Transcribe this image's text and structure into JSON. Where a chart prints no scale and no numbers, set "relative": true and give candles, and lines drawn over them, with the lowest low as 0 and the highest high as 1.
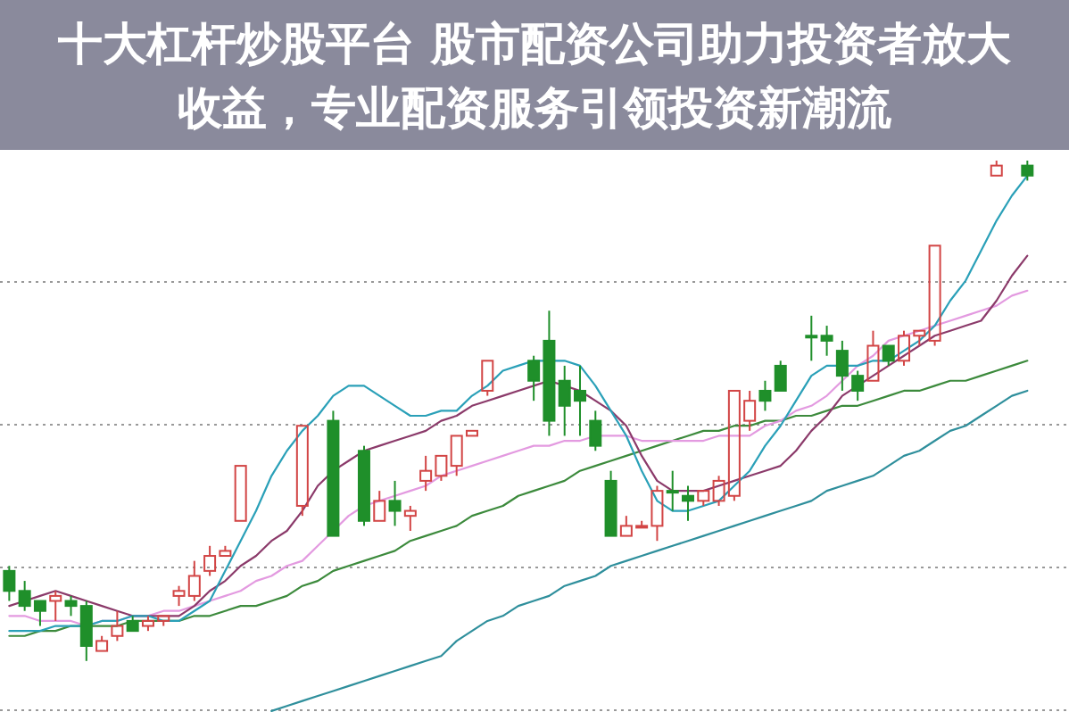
{
  "chart_data": {
    "type": "candlestick",
    "title": "十大杠杆炒股平台 股市配资公司助力投资者放大收益，专业配资服务引领投资新潮流",
    "relative": true,
    "grid": "y",
    "colors": [
      "#1f8f2a",
      "#1f8f2a",
      "#1f8f2a",
      "#d24545",
      "#1f8f2a",
      "#1f8f2a",
      "#d24545",
      "#d24545",
      "#1f8f2a",
      "#d24545",
      "#d24545",
      "#d24545",
      "#d24545",
      "#d24545",
      "#d24545",
      "#d24545",
      null,
      null,
      null,
      "#d24545",
      null,
      "#1f8f2a",
      null,
      "#1f8f2a",
      "#d24545",
      "#1f8f2a",
      "#d24545",
      "#d24545",
      "#d24545",
      "#d24545",
      "#d24545",
      "#d24545",
      null,
      null,
      "#1f8f2a",
      "#1f8f2a",
      "#1f8f2a",
      "#1f8f2a",
      "#1f8f2a",
      "#1f8f2a",
      "#d24545",
      "#d24545",
      "#d24545",
      "#1f8f2a",
      "#1f8f2a",
      "#d24545",
      "#d24545",
      "#d24545",
      "#d24545",
      "#1f8f2a",
      "#1f8f2a",
      null,
      "#1f8f2a",
      "#1f8f2a",
      "#1f8f2a",
      "#1f8f2a",
      "#d24545",
      "#1f8f2a",
      "#d24545",
      "#d24545",
      "#d24545",
      null,
      null,
      null,
      "#d24545",
      null,
      "#1f8f2a"
    ],
    "categories": [
      null,
      null,
      null,
      null,
      null,
      null,
      null,
      null,
      null,
      null,
      null,
      null,
      null,
      null,
      null,
      null,
      null,
      null,
      null,
      null,
      null,
      null,
      null,
      null,
      null,
      null,
      null,
      null,
      null,
      null,
      null,
      null,
      null,
      null,
      null,
      null,
      null,
      null,
      null,
      null,
      null,
      null,
      null,
      null,
      null,
      null,
      null,
      null,
      null,
      null,
      null,
      null,
      null,
      null,
      null,
      null,
      null,
      null,
      null,
      null,
      null,
      null,
      null,
      null,
      null,
      null,
      null
    ],
    "ohlc": [
      [
        0.18,
        0.19,
        0.12,
        0.14
      ],
      [
        0.14,
        0.16,
        0.1,
        0.11
      ],
      [
        0.12,
        0.12,
        0.07,
        0.1
      ],
      [
        0.12,
        0.14,
        0.08,
        0.13
      ],
      [
        0.12,
        0.13,
        0.09,
        0.11
      ],
      [
        0.11,
        0.12,
        0.0,
        0.03
      ],
      [
        0.02,
        0.05,
        0.02,
        0.04
      ],
      [
        0.05,
        0.1,
        0.04,
        0.07
      ],
      [
        0.08,
        0.09,
        0.06,
        0.06
      ],
      [
        0.07,
        0.09,
        0.06,
        0.08
      ],
      [
        0.08,
        0.09,
        0.07,
        0.09
      ],
      [
        0.13,
        0.15,
        0.11,
        0.14
      ],
      [
        0.13,
        0.2,
        0.12,
        0.17
      ],
      [
        0.18,
        0.23,
        0.17,
        0.21
      ],
      [
        0.21,
        0.23,
        0.21,
        0.22
      ],
      [
        0.28,
        0.39,
        0.28,
        0.39
      ],
      null,
      null,
      null,
      [
        0.31,
        0.47,
        0.29,
        0.47
      ],
      null,
      [
        0.48,
        0.5,
        0.25,
        0.25
      ],
      null,
      [
        0.42,
        0.43,
        0.27,
        0.28
      ],
      [
        0.28,
        0.34,
        0.28,
        0.32
      ],
      [
        0.32,
        0.36,
        0.27,
        0.3
      ],
      [
        0.29,
        0.31,
        0.26,
        0.3
      ],
      [
        0.36,
        0.41,
        0.34,
        0.38
      ],
      [
        0.37,
        0.41,
        0.36,
        0.41
      ],
      [
        0.39,
        0.45,
        0.37,
        0.45
      ],
      [
        0.45,
        0.46,
        0.45,
        0.46
      ],
      [
        0.54,
        0.6,
        0.53,
        0.6
      ],
      null,
      null,
      [
        0.6,
        0.61,
        0.52,
        0.56
      ],
      [
        0.64,
        0.7,
        0.45,
        0.48
      ],
      [
        0.56,
        0.59,
        0.45,
        0.51
      ],
      [
        0.54,
        0.59,
        0.45,
        0.52
      ],
      [
        0.48,
        0.5,
        0.42,
        0.43
      ],
      [
        0.36,
        0.38,
        0.25,
        0.25
      ],
      [
        0.25,
        0.29,
        0.25,
        0.27
      ],
      [
        0.27,
        0.28,
        0.27,
        0.27
      ],
      [
        0.27,
        0.35,
        0.24,
        0.34
      ],
      [
        0.34,
        0.38,
        0.3,
        0.34
      ],
      [
        0.33,
        0.35,
        0.28,
        0.32
      ],
      [
        0.32,
        0.34,
        0.31,
        0.34
      ],
      [
        0.32,
        0.37,
        0.31,
        0.36
      ],
      [
        0.33,
        0.54,
        0.32,
        0.54
      ],
      [
        0.48,
        0.54,
        0.46,
        0.52
      ],
      [
        0.54,
        0.56,
        0.5,
        0.52
      ],
      [
        0.59,
        0.6,
        0.54,
        0.54
      ],
      null,
      [
        0.65,
        0.69,
        0.6,
        0.65
      ],
      [
        0.65,
        0.67,
        0.61,
        0.64
      ],
      [
        0.62,
        0.64,
        0.54,
        0.57
      ],
      [
        0.57,
        0.58,
        0.52,
        0.54
      ],
      [
        0.56,
        0.66,
        0.56,
        0.63
      ],
      [
        0.63,
        0.63,
        0.59,
        0.6
      ],
      [
        0.6,
        0.66,
        0.59,
        0.65
      ],
      [
        0.65,
        0.66,
        0.63,
        0.66
      ],
      [
        0.64,
        0.83,
        0.63,
        0.83
      ],
      null,
      null,
      null,
      [
        0.97,
        1.0,
        0.97,
        0.99
      ],
      null,
      [
        0.99,
        1.0,
        0.96,
        0.97
      ]
    ],
    "series": [
      {
        "type": "line",
        "color": "#2f8f9c",
        "values": [
          null,
          null,
          null,
          null,
          null,
          null,
          null,
          null,
          null,
          null,
          null,
          null,
          null,
          null,
          null,
          null,
          null,
          -0.1,
          -0.09,
          -0.08,
          -0.07,
          -0.06,
          -0.05,
          -0.04,
          -0.03,
          -0.02,
          -0.01,
          0.0,
          0.01,
          0.04,
          0.06,
          0.08,
          0.09,
          0.11,
          0.12,
          0.13,
          0.15,
          0.16,
          0.17,
          0.19,
          0.2,
          0.21,
          0.22,
          0.23,
          0.24,
          0.25,
          0.26,
          0.27,
          0.28,
          0.29,
          0.3,
          0.31,
          0.32,
          0.34,
          0.35,
          0.36,
          0.37,
          0.39,
          0.41,
          0.42,
          0.44,
          0.46,
          0.47,
          0.49,
          0.51,
          0.53,
          0.54
        ]
      },
      {
        "type": "line",
        "color": "#3c8a3c",
        "values": [
          0.05,
          0.05,
          0.06,
          0.06,
          0.07,
          0.07,
          0.07,
          0.07,
          0.08,
          0.08,
          0.08,
          0.08,
          0.09,
          0.09,
          0.1,
          0.11,
          0.11,
          0.12,
          0.13,
          0.15,
          0.16,
          0.18,
          0.19,
          0.2,
          0.21,
          0.22,
          0.24,
          0.25,
          0.26,
          0.27,
          0.29,
          0.3,
          0.31,
          0.33,
          0.34,
          0.35,
          0.36,
          0.38,
          0.39,
          0.4,
          0.41,
          0.42,
          0.43,
          0.44,
          0.45,
          0.46,
          0.46,
          0.47,
          0.47,
          0.48,
          0.48,
          0.49,
          0.49,
          0.5,
          0.51,
          0.51,
          0.52,
          0.53,
          0.54,
          0.54,
          0.55,
          0.56,
          0.56,
          0.57,
          0.58,
          0.59,
          0.6
        ]
      },
      {
        "type": "line",
        "color": "#e39ae0",
        "values": [
          0.09,
          0.09,
          0.08,
          0.08,
          0.08,
          0.07,
          0.08,
          0.08,
          0.09,
          0.09,
          0.1,
          0.1,
          0.11,
          0.12,
          0.13,
          0.14,
          0.16,
          0.17,
          0.19,
          0.2,
          0.23,
          0.26,
          0.29,
          0.31,
          0.32,
          0.33,
          0.34,
          0.35,
          0.37,
          0.38,
          0.39,
          0.4,
          0.41,
          0.42,
          0.43,
          0.43,
          0.44,
          0.44,
          0.45,
          0.45,
          0.45,
          0.44,
          0.44,
          0.44,
          0.44,
          0.44,
          0.45,
          0.45,
          0.45,
          0.47,
          0.48,
          0.5,
          0.51,
          0.53,
          0.56,
          0.59,
          0.61,
          0.64,
          0.65,
          0.66,
          0.67,
          0.68,
          0.69,
          0.7,
          0.71,
          0.73,
          0.74
        ]
      },
      {
        "type": "line",
        "color": "#8b3a6a",
        "values": [
          0.11,
          0.12,
          0.13,
          0.14,
          0.13,
          0.12,
          0.11,
          0.1,
          0.09,
          0.09,
          0.09,
          0.09,
          0.11,
          0.14,
          0.16,
          0.19,
          0.21,
          0.24,
          0.26,
          0.3,
          0.35,
          0.38,
          0.4,
          0.42,
          0.43,
          0.44,
          0.45,
          0.46,
          0.48,
          0.49,
          0.51,
          0.52,
          0.53,
          0.54,
          0.55,
          0.56,
          0.55,
          0.54,
          0.52,
          0.5,
          0.47,
          0.41,
          0.36,
          0.34,
          0.34,
          0.34,
          0.35,
          0.36,
          0.37,
          0.38,
          0.39,
          0.42,
          0.46,
          0.49,
          0.53,
          0.55,
          0.57,
          0.59,
          0.61,
          0.63,
          0.65,
          0.66,
          0.67,
          0.68,
          0.72,
          0.77,
          0.81
        ]
      },
      {
        "type": "line",
        "color": "#2aa0b8",
        "values": [
          0.06,
          0.06,
          0.06,
          0.07,
          0.07,
          0.07,
          0.08,
          0.08,
          0.09,
          0.09,
          0.08,
          0.08,
          0.1,
          0.12,
          0.18,
          0.24,
          0.3,
          0.37,
          0.42,
          0.46,
          0.49,
          0.53,
          0.55,
          0.55,
          0.53,
          0.51,
          0.49,
          0.49,
          0.5,
          0.5,
          0.53,
          0.55,
          0.58,
          0.59,
          0.6,
          0.6,
          0.6,
          0.59,
          0.55,
          0.5,
          0.45,
          0.38,
          0.32,
          0.3,
          0.3,
          0.31,
          0.32,
          0.35,
          0.38,
          0.43,
          0.47,
          0.52,
          0.57,
          0.59,
          0.59,
          0.59,
          0.6,
          0.6,
          0.62,
          0.64,
          0.67,
          0.72,
          0.76,
          0.82,
          0.88,
          0.93,
          0.97
        ]
      }
    ]
  }
}
